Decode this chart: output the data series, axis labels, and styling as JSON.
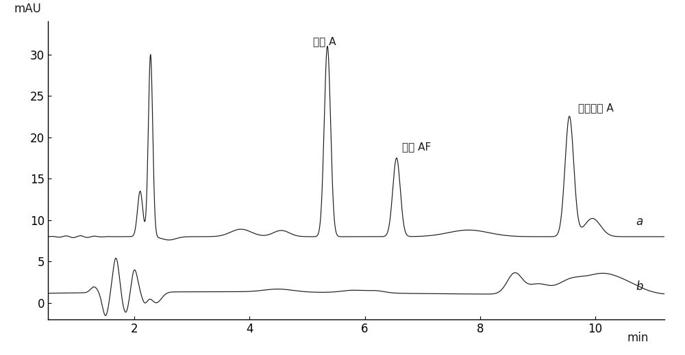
{
  "xlim": [
    0.5,
    11.2
  ],
  "ylim": [
    -2,
    34
  ],
  "xlabel": "min",
  "ylabel": "mAU",
  "yticks": [
    0,
    5,
    10,
    15,
    20,
    25,
    30
  ],
  "xticks": [
    2,
    4,
    6,
    8,
    10
  ],
  "label_a": "a",
  "label_b": "b",
  "annotation_bpa": "双酚 A",
  "annotation_bpaf": "双酚 AF",
  "annotation_tbbpa": "四溄双酚 A",
  "line_color": "#1a1a1a",
  "background_color": "#ffffff",
  "figsize": [
    10.0,
    5.19
  ],
  "dpi": 100
}
